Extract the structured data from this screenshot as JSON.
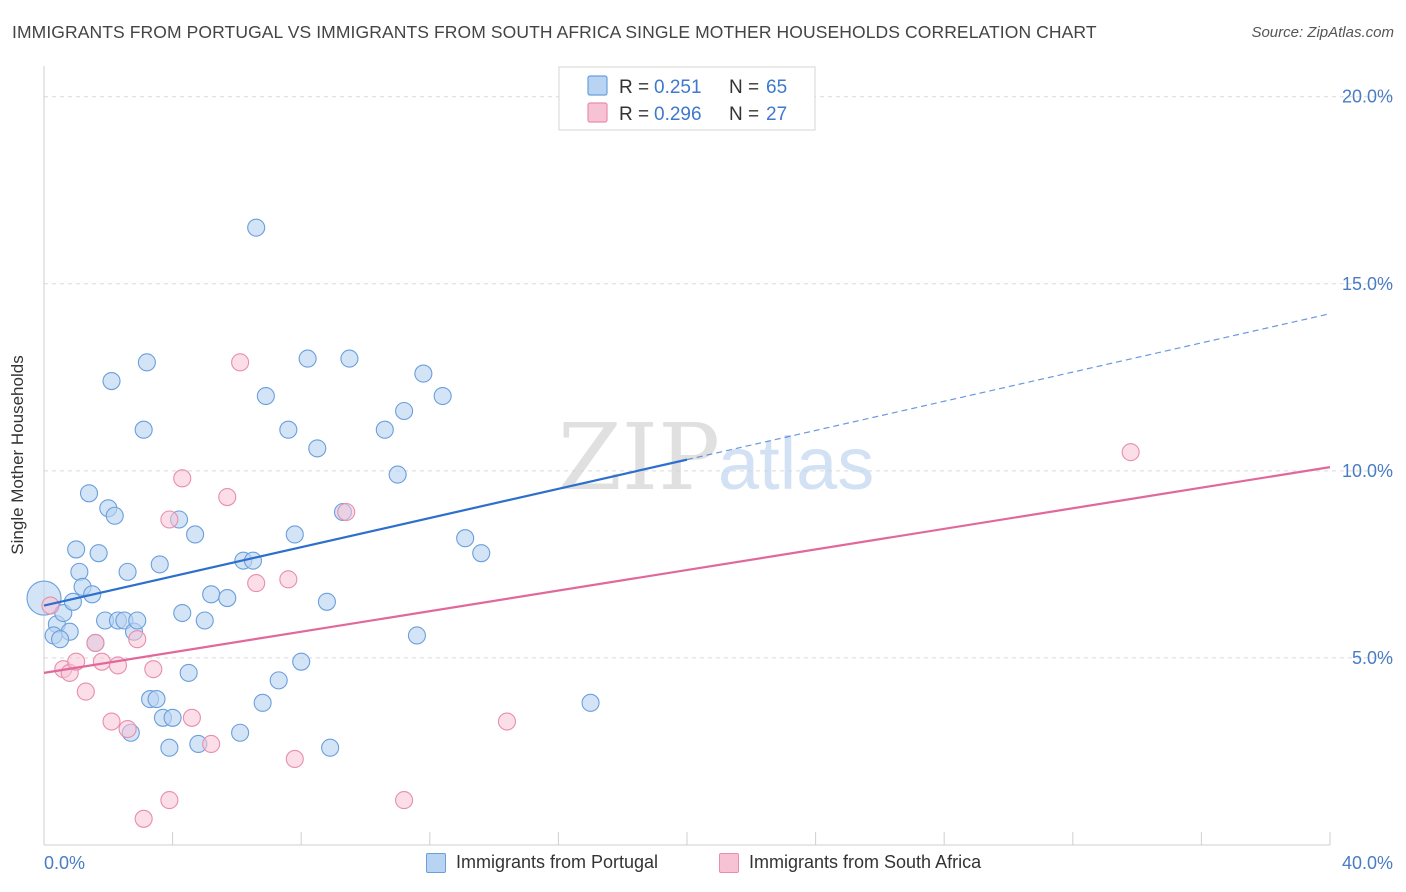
{
  "header": {
    "title": "IMMIGRANTS FROM PORTUGAL VS IMMIGRANTS FROM SOUTH AFRICA SINGLE MOTHER HOUSEHOLDS CORRELATION CHART",
    "source": "Source: ZipAtlas.com"
  },
  "watermark": {
    "part1": "ZIP",
    "part2": "atlas"
  },
  "colors": {
    "portugal_fill": "#b9d3f2",
    "portugal_stroke": "#6a9fdc",
    "portugal_line": "#2d6fcc",
    "south_africa_fill": "#f7c3d4",
    "south_africa_stroke": "#e88eac",
    "south_africa_line": "#e0689a",
    "tick_label": "#4a7cc4",
    "grid": "#d9d9d9"
  },
  "legend_box": {
    "rows": [
      {
        "r_label": "R =",
        "r_value": "0.251",
        "n_label": "N =",
        "n_value": "65"
      },
      {
        "r_label": "R =",
        "r_value": "0.296",
        "n_label": "N =",
        "n_value": "27"
      }
    ]
  },
  "chart_data": {
    "type": "scatter",
    "title": "IMMIGRANTS FROM PORTUGAL VS IMMIGRANTS FROM SOUTH AFRICA SINGLE MOTHER HOUSEHOLDS CORRELATION CHART",
    "xlabel": "",
    "ylabel": "Single Mother Households",
    "xlim": [
      0,
      40
    ],
    "ylim": [
      0,
      20.5
    ],
    "x_tick_labels": [
      {
        "value": 0,
        "label": "0.0%"
      },
      {
        "value": 40,
        "label": "40.0%"
      }
    ],
    "y_tick_labels": [
      {
        "value": 5,
        "label": "5.0%"
      },
      {
        "value": 10,
        "label": "10.0%"
      },
      {
        "value": 15,
        "label": "15.0%"
      },
      {
        "value": 20,
        "label": "20.0%"
      }
    ],
    "grid": true,
    "legend_position": "bottom",
    "series": [
      {
        "name": "Immigrants from Portugal",
        "R": 0.251,
        "N": 65,
        "trend": {
          "x0": 0,
          "y0": 6.4,
          "x1": 20,
          "y1": 10.3,
          "dashed_to_x": 40,
          "dashed_to_y": 14.2
        },
        "points": [
          [
            0.0,
            6.6
          ],
          [
            0.4,
            5.9
          ],
          [
            0.6,
            6.2
          ],
          [
            0.8,
            5.7
          ],
          [
            0.3,
            5.6
          ],
          [
            0.5,
            5.5
          ],
          [
            0.9,
            6.5
          ],
          [
            1.1,
            7.3
          ],
          [
            1.2,
            6.9
          ],
          [
            1.5,
            6.7
          ],
          [
            1.0,
            7.9
          ],
          [
            1.4,
            9.4
          ],
          [
            1.7,
            7.8
          ],
          [
            1.6,
            5.4
          ],
          [
            1.9,
            6.0
          ],
          [
            2.0,
            9.0
          ],
          [
            2.2,
            8.8
          ],
          [
            2.3,
            6.0
          ],
          [
            2.5,
            6.0
          ],
          [
            2.6,
            7.3
          ],
          [
            2.7,
            3.0
          ],
          [
            2.8,
            5.7
          ],
          [
            2.9,
            6.0
          ],
          [
            3.1,
            11.1
          ],
          [
            3.2,
            12.9
          ],
          [
            3.3,
            3.9
          ],
          [
            3.5,
            3.9
          ],
          [
            3.6,
            7.5
          ],
          [
            3.7,
            3.4
          ],
          [
            3.9,
            2.6
          ],
          [
            4.0,
            3.4
          ],
          [
            4.2,
            8.7
          ],
          [
            4.3,
            6.2
          ],
          [
            4.5,
            4.6
          ],
          [
            4.7,
            8.3
          ],
          [
            4.8,
            2.7
          ],
          [
            5.0,
            6.0
          ],
          [
            5.2,
            6.7
          ],
          [
            5.7,
            6.6
          ],
          [
            6.1,
            3.0
          ],
          [
            6.2,
            7.6
          ],
          [
            6.5,
            7.6
          ],
          [
            6.8,
            3.8
          ],
          [
            6.9,
            12.0
          ],
          [
            7.3,
            4.4
          ],
          [
            7.6,
            11.1
          ],
          [
            7.8,
            8.3
          ],
          [
            8.0,
            4.9
          ],
          [
            8.2,
            13.0
          ],
          [
            8.5,
            10.6
          ],
          [
            8.8,
            6.5
          ],
          [
            8.9,
            2.6
          ],
          [
            9.3,
            8.9
          ],
          [
            9.5,
            13.0
          ],
          [
            10.6,
            11.1
          ],
          [
            11.0,
            9.9
          ],
          [
            11.2,
            11.6
          ],
          [
            11.6,
            5.6
          ],
          [
            11.8,
            12.6
          ],
          [
            12.4,
            12.0
          ],
          [
            13.1,
            8.2
          ],
          [
            13.6,
            7.8
          ],
          [
            17.0,
            3.8
          ],
          [
            6.6,
            16.5
          ],
          [
            2.1,
            12.4
          ]
        ]
      },
      {
        "name": "Immigrants from South Africa",
        "R": 0.296,
        "N": 27,
        "trend": {
          "x0": 0,
          "y0": 4.6,
          "x1": 40,
          "y1": 10.1
        },
        "points": [
          [
            0.2,
            6.4
          ],
          [
            0.6,
            4.7
          ],
          [
            0.8,
            4.6
          ],
          [
            1.0,
            4.9
          ],
          [
            1.3,
            4.1
          ],
          [
            1.6,
            5.4
          ],
          [
            1.8,
            4.9
          ],
          [
            2.1,
            3.3
          ],
          [
            2.3,
            4.8
          ],
          [
            2.6,
            3.1
          ],
          [
            2.9,
            5.5
          ],
          [
            3.1,
            0.7
          ],
          [
            3.4,
            4.7
          ],
          [
            3.9,
            8.7
          ],
          [
            3.9,
            1.2
          ],
          [
            4.3,
            9.8
          ],
          [
            4.6,
            3.4
          ],
          [
            5.2,
            2.7
          ],
          [
            5.7,
            9.3
          ],
          [
            6.1,
            12.9
          ],
          [
            6.6,
            7.0
          ],
          [
            7.6,
            7.1
          ],
          [
            7.8,
            2.3
          ],
          [
            9.4,
            8.9
          ],
          [
            11.2,
            1.2
          ],
          [
            14.4,
            3.3
          ],
          [
            33.8,
            10.5
          ]
        ]
      }
    ]
  }
}
